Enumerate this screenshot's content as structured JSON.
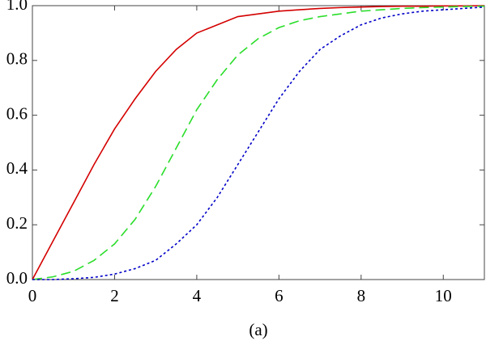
{
  "chart_data": {
    "type": "line",
    "caption": "(a)",
    "x": [
      0,
      0.5,
      1,
      1.5,
      2,
      2.5,
      3,
      3.5,
      4,
      4.5,
      5,
      5.5,
      6,
      6.5,
      7,
      7.5,
      8,
      8.5,
      9,
      9.5,
      10,
      10.5,
      11
    ],
    "series": [
      {
        "color": "#d40000",
        "style": "solid",
        "values": [
          0,
          0.14,
          0.28,
          0.42,
          0.55,
          0.66,
          0.76,
          0.84,
          0.9,
          0.93,
          0.96,
          0.97,
          0.98,
          0.985,
          0.99,
          0.993,
          0.995,
          0.997,
          0.998,
          0.998,
          0.999,
          0.999,
          1.0
        ]
      },
      {
        "color": "#2add2a",
        "style": "dashed",
        "values": [
          0,
          0.01,
          0.03,
          0.07,
          0.13,
          0.22,
          0.34,
          0.48,
          0.62,
          0.73,
          0.82,
          0.88,
          0.92,
          0.945,
          0.96,
          0.97,
          0.98,
          0.985,
          0.99,
          0.993,
          0.995,
          0.997,
          0.998
        ]
      },
      {
        "color": "#0000c8",
        "style": "dotted",
        "values": [
          0,
          0,
          0.003,
          0.008,
          0.02,
          0.04,
          0.07,
          0.13,
          0.2,
          0.3,
          0.42,
          0.54,
          0.66,
          0.76,
          0.84,
          0.89,
          0.93,
          0.955,
          0.97,
          0.98,
          0.985,
          0.99,
          0.995
        ]
      }
    ],
    "xlim": [
      0,
      11
    ],
    "xticks": [
      0,
      2,
      4,
      6,
      8,
      10
    ],
    "ylim": [
      0,
      1
    ],
    "yticks": [
      {
        "value": 0,
        "label": "0.0"
      },
      {
        "value": 0.2,
        "label": "0.2"
      },
      {
        "value": 0.4,
        "label": "0.4"
      },
      {
        "value": 0.6,
        "label": "0.6"
      },
      {
        "value": 0.8,
        "label": "0.8"
      },
      {
        "value": 1,
        "label": "1.0"
      }
    ],
    "grid": false
  }
}
